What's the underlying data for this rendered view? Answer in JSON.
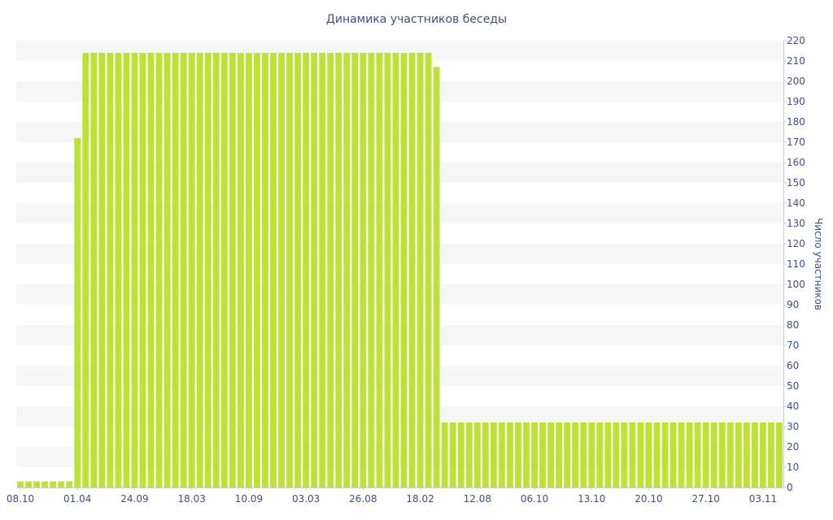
{
  "chart_data": {
    "type": "bar",
    "title": "Динамика участников беседы",
    "xlabel": "",
    "ylabel": "Число участников",
    "ylim": [
      0,
      220
    ],
    "y_ticks": [
      0,
      10,
      20,
      30,
      40,
      50,
      60,
      70,
      80,
      90,
      100,
      110,
      120,
      130,
      140,
      150,
      160,
      170,
      180,
      190,
      200,
      210,
      220
    ],
    "y_axis_position": "right",
    "grid": "alternating horizontal bands",
    "legend": "none",
    "bar_color": "#bde234",
    "band_color": "#f7f7f7",
    "text_color": "#3d4f8a",
    "x_tick_labels": [
      {
        "index": 0,
        "label": "08.10"
      },
      {
        "index": 7,
        "label": "01.04"
      },
      {
        "index": 14,
        "label": "24.09"
      },
      {
        "index": 21,
        "label": "18.03"
      },
      {
        "index": 28,
        "label": "10.09"
      },
      {
        "index": 35,
        "label": "03.03"
      },
      {
        "index": 42,
        "label": "26.08"
      },
      {
        "index": 49,
        "label": "18.02"
      },
      {
        "index": 56,
        "label": "12.08"
      },
      {
        "index": 63,
        "label": "06.10"
      },
      {
        "index": 70,
        "label": "13.10"
      },
      {
        "index": 77,
        "label": "20.10"
      },
      {
        "index": 84,
        "label": "27.10"
      },
      {
        "index": 91,
        "label": "03.11"
      }
    ],
    "values": [
      3,
      3,
      3,
      3,
      3,
      3,
      3,
      172,
      214,
      214,
      214,
      214,
      214,
      214,
      214,
      214,
      214,
      214,
      214,
      214,
      214,
      214,
      214,
      214,
      214,
      214,
      214,
      214,
      214,
      214,
      214,
      214,
      214,
      214,
      214,
      214,
      214,
      214,
      214,
      214,
      214,
      214,
      214,
      214,
      214,
      214,
      214,
      214,
      214,
      214,
      214,
      207,
      32,
      32,
      32,
      32,
      32,
      32,
      32,
      32,
      32,
      32,
      32,
      32,
      32,
      32,
      32,
      32,
      32,
      32,
      32,
      32,
      32,
      32,
      32,
      32,
      32,
      32,
      32,
      32,
      32,
      32,
      32,
      32,
      32,
      32,
      32,
      32,
      32,
      32,
      32,
      32,
      32,
      32
    ]
  }
}
